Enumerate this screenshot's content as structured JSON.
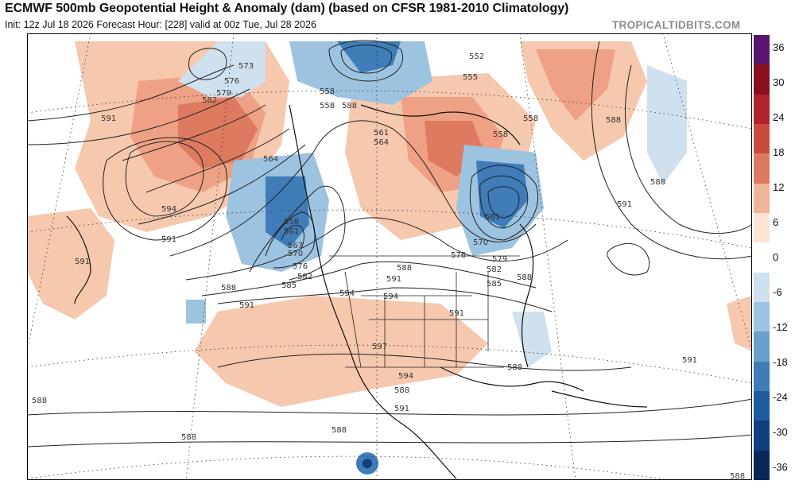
{
  "header": {
    "title": "ECMWF 500mb Geopotential Height & Anomaly (dam) (based on CFSR 1981-2010 Climatology)",
    "subtitle": "Init: 12z Jul 18 2026   Forecast Hour: [228]   valid at 00z Tue, Jul 28 2026",
    "brand": "TROPICALTIDBITS.COM"
  },
  "colorbar": {
    "labels": [
      "36",
      "30",
      "24",
      "18",
      "12",
      "6",
      "0",
      "-6",
      "-12",
      "-18",
      "-24",
      "-30",
      "-36"
    ],
    "colors": [
      "#5a1570",
      "#8a0f1f",
      "#b0232c",
      "#c94a3d",
      "#dd7a60",
      "#f2b496",
      "#fde3d3",
      "#ffffff",
      "#cfe0ee",
      "#9cc3e0",
      "#6aa1cc",
      "#3f7cb8",
      "#1f5c9e",
      "#0f3f7d",
      "#0a2759"
    ]
  },
  "contour_labels": [
    "573",
    "576",
    "579",
    "582",
    "591",
    "594",
    "591",
    "588",
    "591",
    "564",
    "558",
    "561",
    "567",
    "570",
    "576",
    "582",
    "585",
    "588",
    "594",
    "597",
    "591",
    "588",
    "594",
    "591",
    "552",
    "555",
    "558",
    "558",
    "561",
    "564",
    "558",
    "561",
    "570",
    "576",
    "579",
    "582",
    "585",
    "558",
    "588",
    "591",
    "588",
    "591",
    "588",
    "588",
    "588",
    "591",
    "594",
    "588",
    "588",
    "588",
    "591",
    "588"
  ]
}
